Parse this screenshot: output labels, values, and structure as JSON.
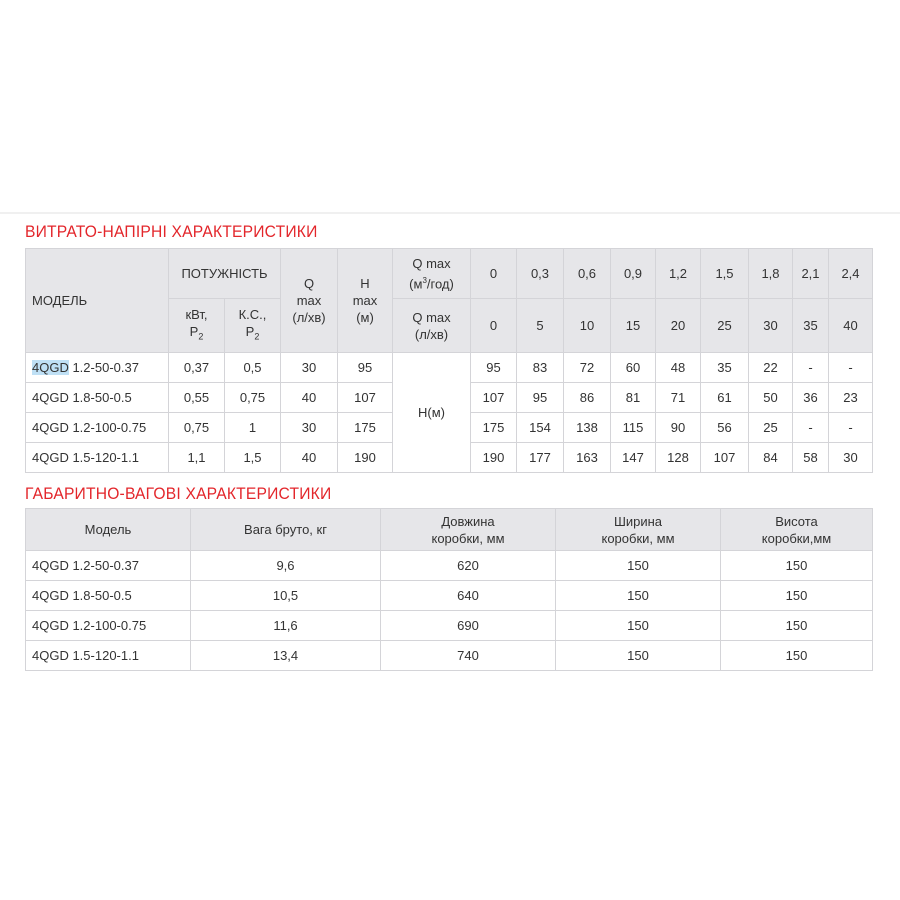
{
  "section1": {
    "title": "ВИТРАТО-НАПІРНІ ХАРАКТЕРИСТИКИ",
    "headers": {
      "model": "МОДЕЛЬ",
      "power": "ПОТУЖНІСТЬ",
      "kw": "кВт,",
      "hp": "К.С.,",
      "p": "P",
      "p_sub": "2",
      "qmax_1": "Q",
      "qmax_2": "max",
      "qmax_3": "(л/хв)",
      "hmax_1": "H",
      "hmax_2": "max",
      "hmax_3": "(м)",
      "q_m3_1": "Q max",
      "q_m3_2": "(м",
      "q_m3_sup": "3",
      "q_m3_3": "/год)",
      "q_l_1": "Q max",
      "q_l_2": "(л/хв)",
      "h_label": "H(м)"
    },
    "q_m3": [
      "0",
      "0,3",
      "0,6",
      "0,9",
      "1,2",
      "1,5",
      "1,8",
      "2,1",
      "2,4"
    ],
    "q_l": [
      "0",
      "5",
      "10",
      "15",
      "20",
      "25",
      "30",
      "35",
      "40"
    ],
    "rows": [
      {
        "model_prefix": "4QGD",
        "model_rest": " 1.2-50-0.37",
        "kw": "0,37",
        "hp": "0,5",
        "qmax": "30",
        "hmax": "95",
        "h": [
          "95",
          "83",
          "72",
          "60",
          "48",
          "35",
          "22",
          "-",
          "-"
        ]
      },
      {
        "model_prefix": "4QGD",
        "model_rest": " 1.8-50-0.5",
        "kw": "0,55",
        "hp": "0,75",
        "qmax": "40",
        "hmax": "107",
        "h": [
          "107",
          "95",
          "86",
          "81",
          "71",
          "61",
          "50",
          "36",
          "23"
        ]
      },
      {
        "model_prefix": "4QGD",
        "model_rest": " 1.2-100-0.75",
        "kw": "0,75",
        "hp": "1",
        "qmax": "30",
        "hmax": "175",
        "h": [
          "175",
          "154",
          "138",
          "115",
          "90",
          "56",
          "25",
          "-",
          "-"
        ]
      },
      {
        "model_prefix": "4QGD",
        "model_rest": " 1.5-120-1.1",
        "kw": "1,1",
        "hp": "1,5",
        "qmax": "40",
        "hmax": "190",
        "h": [
          "190",
          "177",
          "163",
          "147",
          "128",
          "107",
          "84",
          "58",
          "30"
        ]
      }
    ],
    "highlight_color": "#bfe0f5"
  },
  "section2": {
    "title": "ГАБАРИТНО-ВАГОВІ ХАРАКТЕРИСТИКИ",
    "headers": {
      "model": "Модель",
      "weight": "Вага бруто, кг",
      "length_1": "Довжина",
      "length_2": "коробки, мм",
      "width_1": "Ширина",
      "width_2": "коробки, мм",
      "height_1": "Висота",
      "height_2": "коробки,мм"
    },
    "rows": [
      {
        "model": "4QGD 1.2-50-0.37",
        "weight": "9,6",
        "length": "620",
        "width": "150",
        "height": "150"
      },
      {
        "model": "4QGD 1.8-50-0.5",
        "weight": "10,5",
        "length": "640",
        "width": "150",
        "height": "150"
      },
      {
        "model": "4QGD 1.2-100-0.75",
        "weight": "11,6",
        "length": "690",
        "width": "150",
        "height": "150"
      },
      {
        "model": "4QGD 1.5-120-1.1",
        "weight": "13,4",
        "length": "740",
        "width": "150",
        "height": "150"
      }
    ]
  },
  "colors": {
    "title": "#e3262b",
    "header_bg": "#e6e6e9",
    "border": "#d4d4d8"
  }
}
